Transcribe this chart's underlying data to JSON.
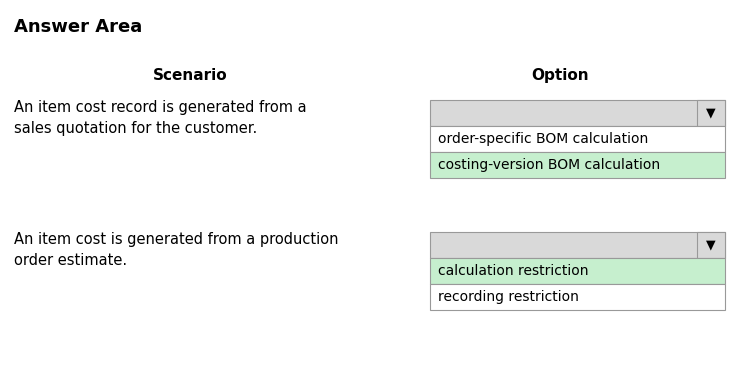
{
  "title": "Answer Area",
  "col_scenario": "Scenario",
  "col_option": "Option",
  "scenarios": [
    {
      "text": "An item cost record is generated from a\nsales quotation for the customer.",
      "options": [
        "order-specific BOM calculation",
        "costing-version BOM calculation"
      ],
      "highlighted": 1
    },
    {
      "text": "An item cost is generated from a production\norder estimate.",
      "options": [
        "calculation restriction",
        "recording restriction"
      ],
      "highlighted": 0
    }
  ],
  "bg_color": "#ffffff",
  "dropdown_header_bg": "#d9d9d9",
  "dropdown_border": "#999999",
  "highlight_color": "#c6efce",
  "normal_color": "#ffffff",
  "text_color": "#000000",
  "title_fontsize": 13,
  "header_fontsize": 11,
  "body_fontsize": 10.5,
  "option_fontsize": 10
}
